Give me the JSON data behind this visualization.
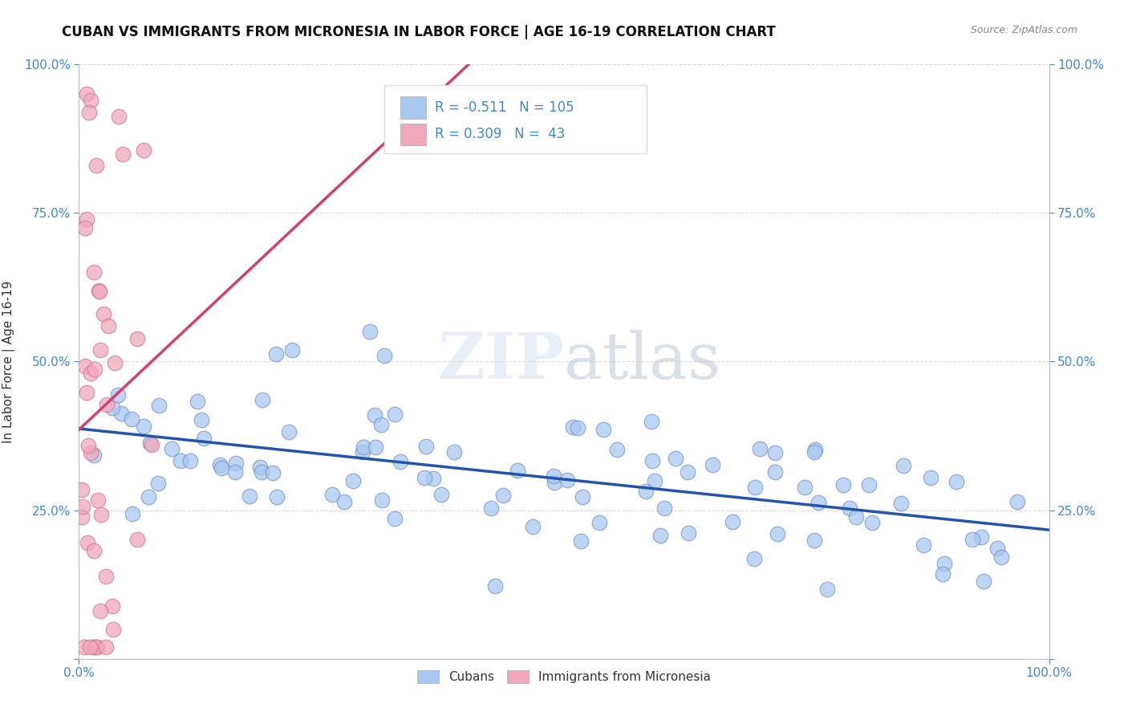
{
  "title": "CUBAN VS IMMIGRANTS FROM MICRONESIA IN LABOR FORCE | AGE 16-19 CORRELATION CHART",
  "source": "Source: ZipAtlas.com",
  "ylabel": "In Labor Force | Age 16-19",
  "xlim": [
    0.0,
    1.0
  ],
  "ylim": [
    0.0,
    1.0
  ],
  "blue_R": -0.511,
  "blue_N": 105,
  "pink_R": 0.309,
  "pink_N": 43,
  "blue_color": "#a8c8f0",
  "pink_color": "#f0a8bc",
  "blue_edge_color": "#7090c8",
  "pink_edge_color": "#d07090",
  "blue_line_color": "#2255aa",
  "pink_line_color": "#d04070",
  "watermark": "ZIPatlas",
  "legend_cubans": "Cubans",
  "legend_micro": "Immigrants from Micronesia",
  "title_fontsize": 12,
  "label_fontsize": 11,
  "tick_fontsize": 11,
  "tick_color": "#4488cc",
  "ylabel_color": "#333333",
  "grid_color": "#cccccc"
}
